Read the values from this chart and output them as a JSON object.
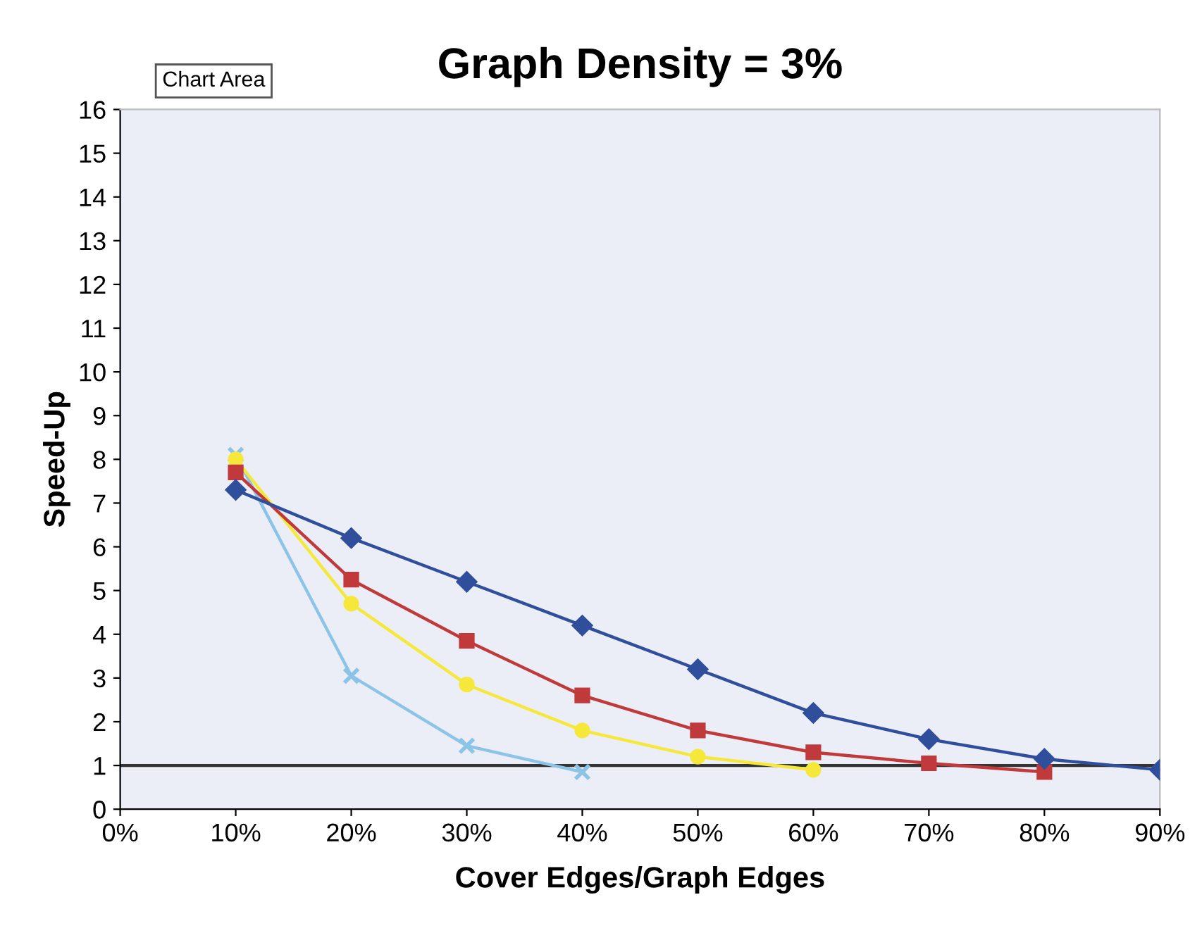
{
  "chart_data": {
    "type": "line",
    "title": "Graph Density = 3%",
    "xlabel": "Cover Edges/Graph Edges",
    "ylabel": "Speed-Up",
    "annotations": [
      "Chart Area"
    ],
    "x": [
      10,
      20,
      30,
      40,
      50,
      60,
      70,
      80,
      90
    ],
    "series": [
      {
        "color": "#2f4f9c",
        "marker": "diamond",
        "values": [
          7.3,
          6.2,
          5.2,
          4.2,
          3.2,
          2.2,
          1.6,
          1.15,
          0.9
        ]
      },
      {
        "color": "#c0393b",
        "marker": "square",
        "values": [
          7.7,
          5.25,
          3.85,
          2.6,
          1.8,
          1.3,
          1.05,
          0.85,
          null
        ]
      },
      {
        "color": "#f5e83a",
        "marker": "circle",
        "values": [
          8.0,
          4.7,
          2.85,
          1.8,
          1.2,
          0.9,
          null,
          null,
          null
        ]
      },
      {
        "color": "#8cc4e8",
        "marker": "cross",
        "values": [
          8.1,
          3.05,
          1.45,
          0.85,
          null,
          null,
          null,
          null,
          null
        ]
      }
    ],
    "xlim": [
      0,
      90
    ],
    "xticks": [
      {
        "value": 0,
        "label": "0%"
      },
      {
        "value": 10,
        "label": "10%"
      },
      {
        "value": 20,
        "label": "20%"
      },
      {
        "value": 30,
        "label": "30%"
      },
      {
        "value": 40,
        "label": "40%"
      },
      {
        "value": 50,
        "label": "50%"
      },
      {
        "value": 60,
        "label": "60%"
      },
      {
        "value": 70,
        "label": "70%"
      },
      {
        "value": 80,
        "label": "80%"
      },
      {
        "value": 90,
        "label": "90%"
      }
    ],
    "ylim": [
      0,
      16
    ],
    "yticks": [
      0,
      1,
      2,
      3,
      4,
      5,
      6,
      7,
      8,
      9,
      10,
      11,
      12,
      13,
      14,
      15,
      16
    ],
    "ref_lines": [
      {
        "axis": "y",
        "value": 1,
        "color": "#333333"
      }
    ],
    "grid": false,
    "legend": false
  }
}
